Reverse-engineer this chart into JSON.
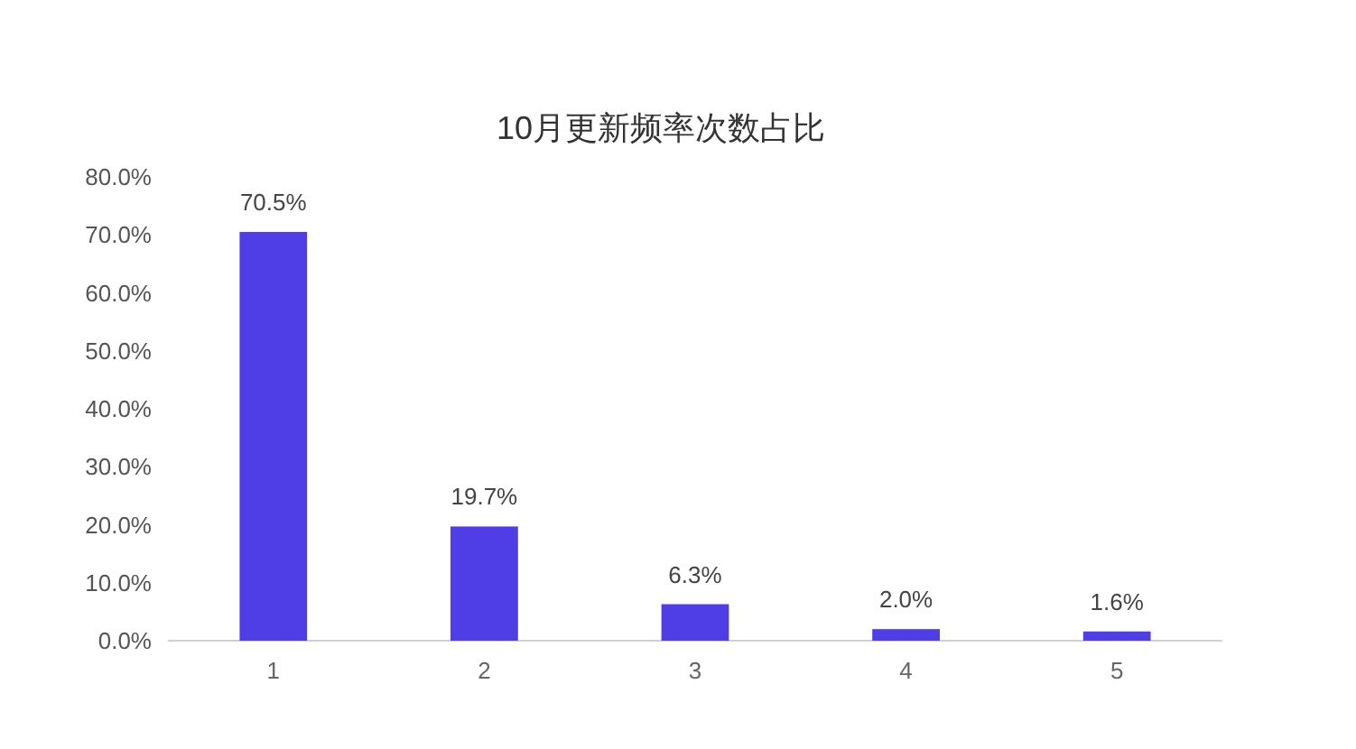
{
  "chart_data": {
    "type": "bar",
    "title": "10月更新频率次数占比",
    "categories": [
      "1",
      "2",
      "3",
      "4",
      "5"
    ],
    "values": [
      70.5,
      19.7,
      6.3,
      2.0,
      1.6
    ],
    "value_labels": [
      "70.5%",
      "19.7%",
      "6.3%",
      "2.0%",
      "1.6%"
    ],
    "color": "#4f3de6",
    "ylim": [
      0,
      80
    ],
    "yticks": [
      {
        "value": 0,
        "label": "0.0%"
      },
      {
        "value": 10,
        "label": "10.0%"
      },
      {
        "value": 20,
        "label": "20.0%"
      },
      {
        "value": 30,
        "label": "30.0%"
      },
      {
        "value": 40,
        "label": "40.0%"
      },
      {
        "value": 50,
        "label": "50.0%"
      },
      {
        "value": 60,
        "label": "60.0%"
      },
      {
        "value": 70,
        "label": "70.0%"
      },
      {
        "value": 80,
        "label": "80.0%"
      }
    ]
  }
}
